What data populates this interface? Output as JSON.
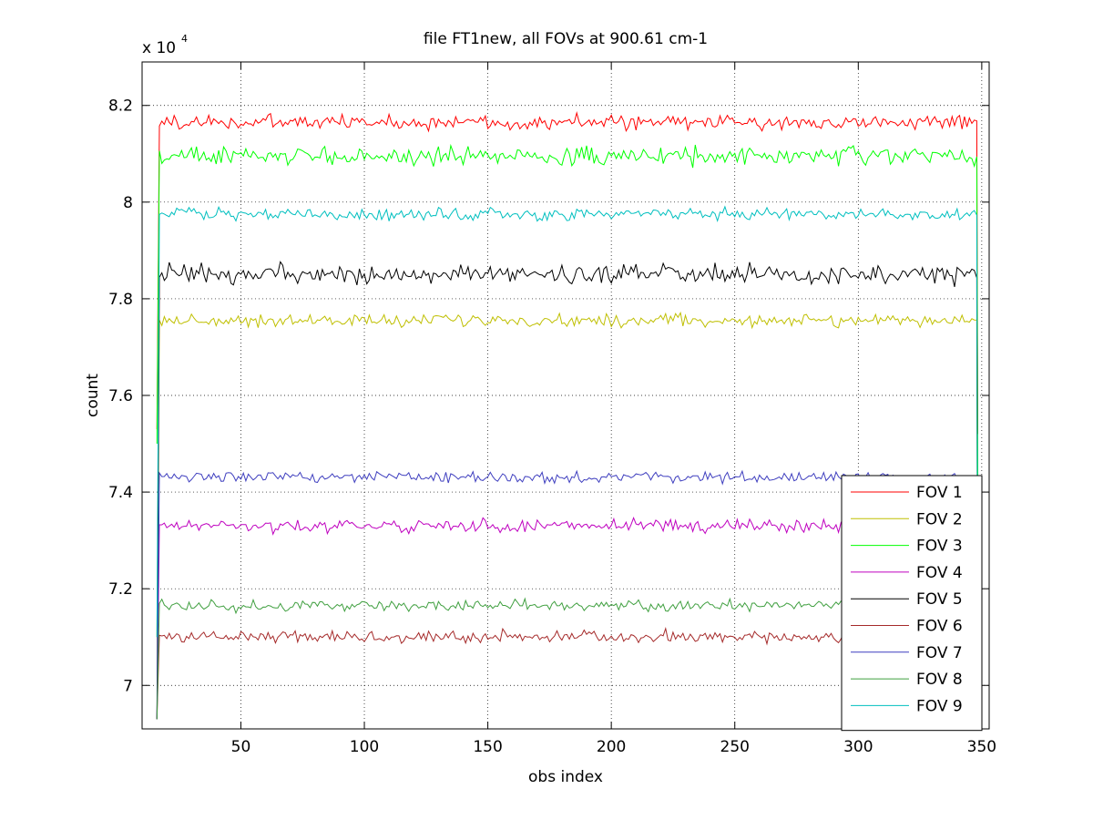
{
  "chart_data": {
    "type": "line",
    "title": "file FT1new, all FOVs at 900.61 cm-1",
    "xlabel": "obs index",
    "ylabel": "count",
    "y_multiplier": {
      "base": "x 10",
      "exponent": "4"
    },
    "xlim": [
      10,
      353
    ],
    "ylim": [
      69100,
      82900
    ],
    "xticks": [
      50,
      100,
      150,
      200,
      250,
      300,
      350
    ],
    "xtick_labels": [
      "50",
      "100",
      "150",
      "200",
      "250",
      "300",
      "350"
    ],
    "yticks": [
      70000,
      72000,
      74000,
      76000,
      78000,
      80000,
      82000
    ],
    "ytick_labels": [
      "7",
      "7.2",
      "7.4",
      "7.6",
      "7.8",
      "8",
      "8.2"
    ],
    "grid": true,
    "legend_position": "bottom-right",
    "x_range": [
      16,
      348
    ],
    "series": [
      {
        "name": "FOV 1",
        "color": "#ff0000",
        "mean": 81650,
        "noise": 110,
        "start": 75300,
        "end": 75200
      },
      {
        "name": "FOV 2",
        "color": "#bfbf00",
        "mean": 77550,
        "noise": 90,
        "start": 71000,
        "end": 71000
      },
      {
        "name": "FOV 3",
        "color": "#00ff00",
        "mean": 80950,
        "noise": 130,
        "start": 75000,
        "end": 74200
      },
      {
        "name": "FOV 4",
        "color": "#bf00bf",
        "mean": 73300,
        "noise": 90,
        "start": 69300,
        "end": 69300
      },
      {
        "name": "FOV 5",
        "color": "#000000",
        "mean": 78500,
        "noise": 140,
        "start": 69300,
        "end": 69300
      },
      {
        "name": "FOV 6",
        "color": "#a52a2a",
        "mean": 71000,
        "noise": 90,
        "start": 69300,
        "end": 69300
      },
      {
        "name": "FOV 7",
        "color": "#3f3fbf",
        "mean": 74300,
        "noise": 80,
        "start": 69300,
        "end": 69300
      },
      {
        "name": "FOV 8",
        "color": "#3f9f3f",
        "mean": 71650,
        "noise": 80,
        "start": 69300,
        "end": 69300
      },
      {
        "name": "FOV 9",
        "color": "#00bfbf",
        "mean": 79750,
        "noise": 90,
        "start": 71000,
        "end": 69300
      }
    ]
  }
}
